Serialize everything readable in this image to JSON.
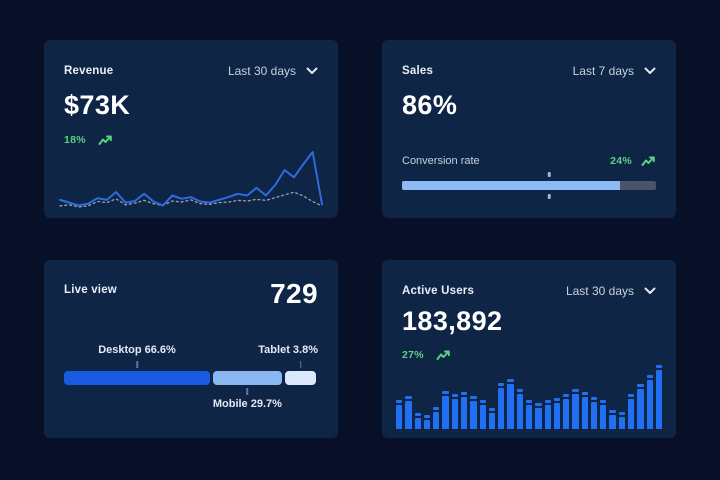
{
  "page": {
    "background": "#081028",
    "card_background": "#0f2545"
  },
  "colors": {
    "title_text": "#e9eef6",
    "muted_text": "#c8d1de",
    "value_text": "#ffffff",
    "positive_green": "#5bd183",
    "line_blue": "#2f6be0",
    "dotted_gray": "#97a1b3",
    "bar_blue": "#2170f4",
    "progress_fill": "#8dbaf4",
    "progress_track": "#49536a",
    "desktop_blue": "#1a5ae0",
    "mobile_blue": "#8ab6f2",
    "tablet_blue": "#dce9fc"
  },
  "cards": {
    "revenue": {
      "title": "Revenue",
      "range_label": "Last 30 days",
      "range_icon": "chevron-down-icon",
      "value": "$73K",
      "change": "18%",
      "change_icon": "trend-up-icon",
      "chart_data": {
        "type": "line",
        "x_count": 29,
        "ylim": [
          0,
          100
        ],
        "grid": false,
        "axes_hidden": true,
        "series": [
          {
            "name": "current-period",
            "style": "solid",
            "color": "#2f6be0",
            "values": [
              13,
              8,
              3,
              6,
              16,
              13,
              27,
              8,
              11,
              24,
              10,
              3,
              21,
              15,
              18,
              10,
              8,
              13,
              18,
              24,
              21,
              35,
              21,
              40,
              67,
              54,
              78,
              100,
              5
            ]
          },
          {
            "name": "previous-period",
            "style": "dotted",
            "color": "#97a1b3",
            "values": [
              2,
              4,
              0,
              2,
              10,
              8,
              15,
              4,
              7,
              12,
              6,
              3,
              11,
              9,
              13,
              6,
              5,
              8,
              9,
              12,
              11,
              14,
              12,
              17,
              22,
              27,
              20,
              10,
              2
            ]
          }
        ],
        "note": "sparkline without axes; values estimated on 0-100 relative scale"
      }
    },
    "sales": {
      "title": "Sales",
      "range_label": "Last 7 days",
      "range_icon": "chevron-down-icon",
      "value": "86%",
      "metric_label": "Conversion rate",
      "change": "24%",
      "change_icon": "trend-up-icon",
      "chart_data": {
        "type": "progress_bar",
        "percent": 86,
        "marker_percent": 58,
        "fill_color": "#8dbaf4",
        "track_color": "#49536a"
      }
    },
    "live_view": {
      "title": "Live view",
      "value": "729",
      "chart_data": {
        "type": "stacked_bar",
        "segments": [
          {
            "label": "Desktop",
            "percent": 66.6,
            "display": "Desktop 66.6%",
            "color": "#1a5ae0",
            "label_position": "top"
          },
          {
            "label": "Mobile",
            "percent": 29.7,
            "display": "Mobile 29.7%",
            "color": "#8ab6f2",
            "label_position": "bottom"
          },
          {
            "label": "Tablet",
            "percent": 3.8,
            "display": "Tablet 3.8%",
            "color": "#dce9fc",
            "label_position": "top"
          }
        ],
        "render_widths_percent": [
          57.5,
          27,
          12.5
        ]
      }
    },
    "active_users": {
      "title": "Active Users",
      "range_label": "Last 30 days",
      "range_icon": "chevron-down-icon",
      "value": "183,892",
      "change": "27%",
      "change_icon": "trend-up-icon",
      "chart_data": {
        "type": "bar",
        "bar_color": "#2170f4",
        "ylim": [
          0,
          100
        ],
        "values": [
          45,
          52,
          25,
          22,
          35,
          60,
          55,
          58,
          52,
          46,
          33,
          72,
          78,
          62,
          45,
          40,
          45,
          48,
          55,
          63,
          58,
          50,
          45,
          30,
          27,
          55,
          70,
          85,
          100
        ],
        "note": "relative bar heights estimated; bars drawn with small separated top cap; no axes shown"
      }
    }
  }
}
